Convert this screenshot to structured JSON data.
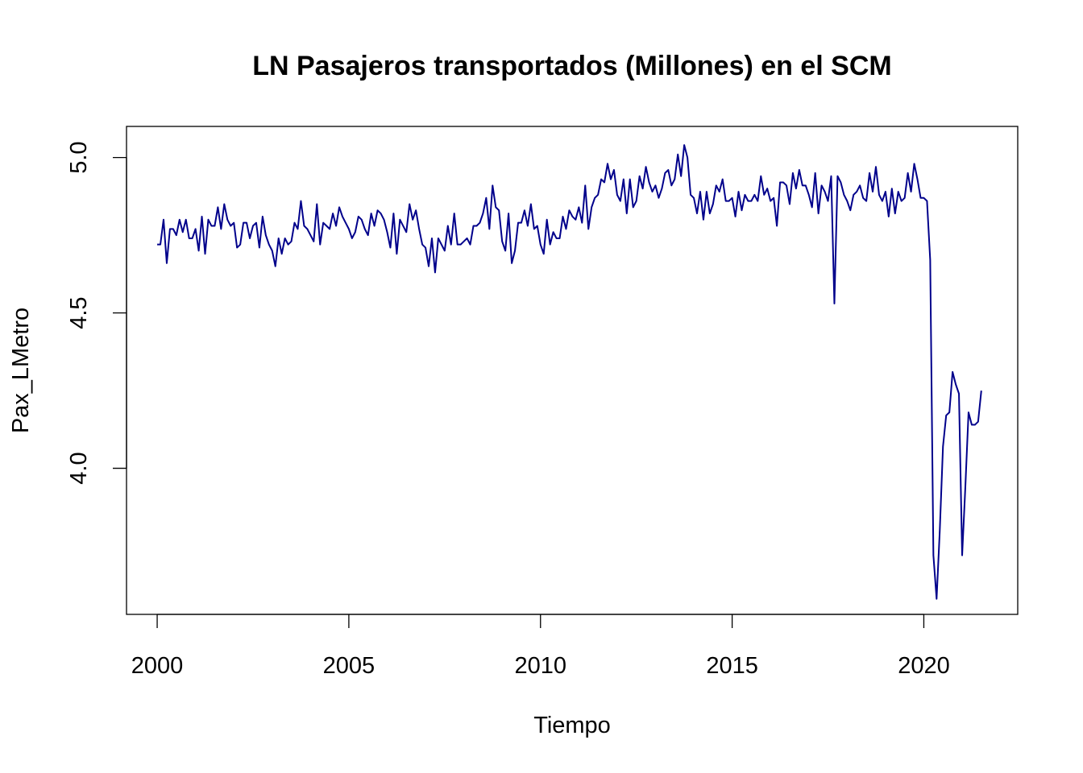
{
  "chart_data": {
    "type": "line",
    "title": "LN Pasajeros transportados (Millones) en el SCM",
    "xlabel": "Tiempo",
    "ylabel": "Pax_LMetro",
    "xlim": [
      1999.2,
      2022.45
    ],
    "ylim": [
      3.53,
      5.1
    ],
    "x_ticks": [
      2000,
      2005,
      2010,
      2015,
      2020
    ],
    "x_tick_labels": [
      "2000",
      "2005",
      "2010",
      "2015",
      "2020"
    ],
    "y_ticks": [
      4.0,
      4.5,
      5.0
    ],
    "y_tick_labels": [
      "4.0",
      "4.5",
      "5.0"
    ],
    "grid": false,
    "colors": {
      "line": "#00008B",
      "axis": "#000000",
      "background": "#ffffff"
    },
    "series": [
      {
        "x_start": 2000.0,
        "frequency": 12,
        "values": [
          4.72,
          4.72,
          4.8,
          4.66,
          4.77,
          4.77,
          4.75,
          4.8,
          4.76,
          4.8,
          4.74,
          4.74,
          4.77,
          4.7,
          4.81,
          4.69,
          4.8,
          4.78,
          4.78,
          4.84,
          4.77,
          4.85,
          4.8,
          4.78,
          4.79,
          4.71,
          4.72,
          4.79,
          4.79,
          4.74,
          4.78,
          4.79,
          4.71,
          4.81,
          4.75,
          4.72,
          4.7,
          4.65,
          4.74,
          4.69,
          4.74,
          4.72,
          4.73,
          4.79,
          4.77,
          4.86,
          4.78,
          4.77,
          4.75,
          4.73,
          4.85,
          4.72,
          4.79,
          4.78,
          4.77,
          4.82,
          4.78,
          4.84,
          4.81,
          4.79,
          4.77,
          4.74,
          4.76,
          4.81,
          4.8,
          4.77,
          4.75,
          4.82,
          4.78,
          4.83,
          4.82,
          4.8,
          4.76,
          4.71,
          4.82,
          4.69,
          4.8,
          4.78,
          4.76,
          4.85,
          4.8,
          4.83,
          4.77,
          4.72,
          4.71,
          4.65,
          4.74,
          4.63,
          4.74,
          4.72,
          4.7,
          4.78,
          4.72,
          4.82,
          4.72,
          4.72,
          4.73,
          4.74,
          4.72,
          4.78,
          4.78,
          4.79,
          4.82,
          4.87,
          4.77,
          4.91,
          4.84,
          4.83,
          4.73,
          4.7,
          4.82,
          4.66,
          4.7,
          4.79,
          4.79,
          4.83,
          4.78,
          4.85,
          4.77,
          4.78,
          4.72,
          4.69,
          4.8,
          4.72,
          4.76,
          4.74,
          4.74,
          4.81,
          4.77,
          4.83,
          4.81,
          4.8,
          4.84,
          4.79,
          4.91,
          4.77,
          4.84,
          4.87,
          4.88,
          4.93,
          4.92,
          4.98,
          4.93,
          4.96,
          4.88,
          4.86,
          4.93,
          4.82,
          4.93,
          4.84,
          4.86,
          4.94,
          4.9,
          4.97,
          4.92,
          4.89,
          4.91,
          4.87,
          4.9,
          4.95,
          4.96,
          4.91,
          4.93,
          5.01,
          4.94,
          5.04,
          5.0,
          4.88,
          4.87,
          4.82,
          4.89,
          4.8,
          4.89,
          4.82,
          4.85,
          4.91,
          4.89,
          4.93,
          4.86,
          4.86,
          4.87,
          4.81,
          4.89,
          4.83,
          4.88,
          4.86,
          4.86,
          4.88,
          4.86,
          4.94,
          4.88,
          4.9,
          4.86,
          4.87,
          4.78,
          4.92,
          4.92,
          4.91,
          4.85,
          4.95,
          4.9,
          4.96,
          4.91,
          4.91,
          4.88,
          4.84,
          4.95,
          4.82,
          4.91,
          4.89,
          4.86,
          4.94,
          4.53,
          4.94,
          4.92,
          4.88,
          4.86,
          4.83,
          4.88,
          4.89,
          4.91,
          4.87,
          4.86,
          4.95,
          4.89,
          4.97,
          4.88,
          4.86,
          4.89,
          4.81,
          4.9,
          4.82,
          4.89,
          4.86,
          4.87,
          4.95,
          4.89,
          4.98,
          4.93,
          4.87,
          4.87,
          4.86,
          4.67,
          3.72,
          3.58,
          3.8,
          4.07,
          4.17,
          4.18,
          4.31,
          4.27,
          4.24,
          3.72,
          3.94,
          4.18,
          4.14,
          4.14,
          4.15,
          4.25
        ]
      }
    ]
  }
}
